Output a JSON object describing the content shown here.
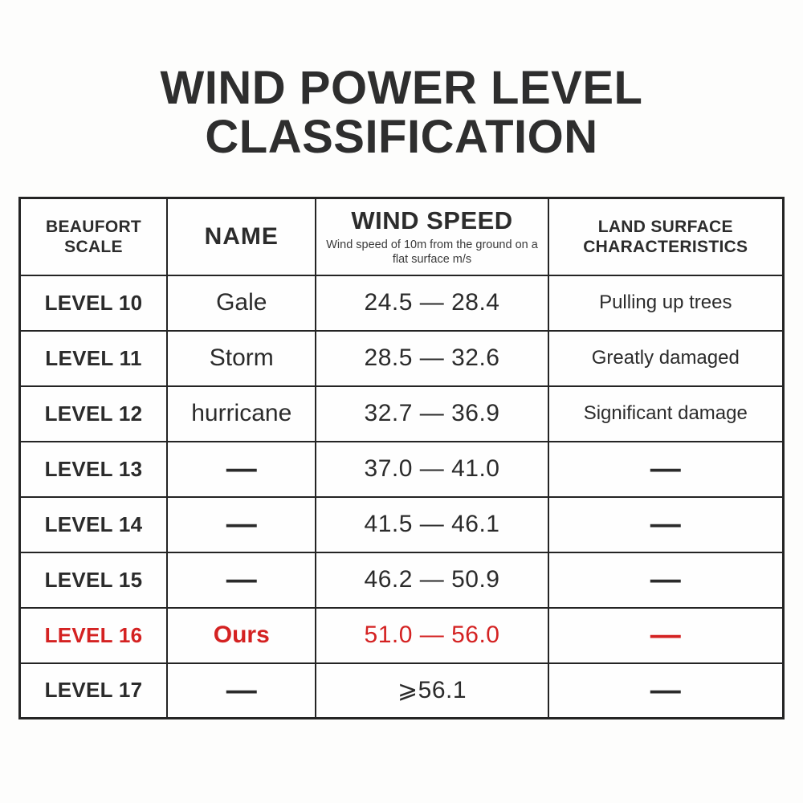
{
  "title": {
    "line1": "WIND POWER LEVEL",
    "line2": "CLASSIFICATION"
  },
  "colors": {
    "accent_red": "#d42222",
    "text": "#2b2b2b",
    "border": "#242424",
    "background": "#fdfdfc"
  },
  "table": {
    "headers": [
      {
        "label": "BEAUFORT SCALE"
      },
      {
        "label": "NAME"
      },
      {
        "label": "WIND SPEED",
        "sub": "Wind speed of 10m from the ground on a flat surface m/s"
      },
      {
        "label": "LAND SURFACE CHARACTERISTICS"
      }
    ],
    "rows": [
      {
        "level": "LEVEL 10",
        "name": "Gale",
        "speed": "24.5 — 28.4",
        "land": "Pulling up trees",
        "highlight": false
      },
      {
        "level": "LEVEL 11",
        "name": "Storm",
        "speed": "28.5 — 32.6",
        "land": "Greatly damaged",
        "highlight": false
      },
      {
        "level": "LEVEL 12",
        "name": "hurricane",
        "speed": "32.7 — 36.9",
        "land": "Significant damage",
        "highlight": false
      },
      {
        "level": "LEVEL 13",
        "name": "—",
        "speed": "37.0 — 41.0",
        "land": "—",
        "highlight": false
      },
      {
        "level": "LEVEL 14",
        "name": "—",
        "speed": "41.5 — 46.1",
        "land": "—",
        "highlight": false
      },
      {
        "level": "LEVEL 15",
        "name": "—",
        "speed": "46.2 — 50.9",
        "land": "—",
        "highlight": false
      },
      {
        "level": "LEVEL 16",
        "name": "Ours",
        "speed": "51.0 — 56.0",
        "land": "—",
        "highlight": true
      },
      {
        "level": "LEVEL 17",
        "name": "—",
        "speed": "⩾56.1",
        "land": "—",
        "highlight": false
      }
    ]
  },
  "chart_data": {
    "type": "table",
    "title": "WIND POWER LEVEL CLASSIFICATION",
    "columns": [
      "BEAUFORT SCALE",
      "NAME",
      "WIND SPEED (Wind speed of 10m from the ground on a flat surface m/s)",
      "LAND SURFACE CHARACTERISTICS"
    ],
    "rows": [
      [
        "LEVEL 10",
        "Gale",
        "24.5 — 28.4",
        "Pulling up trees"
      ],
      [
        "LEVEL 11",
        "Storm",
        "28.5 — 32.6",
        "Greatly damaged"
      ],
      [
        "LEVEL 12",
        "hurricane",
        "32.7 — 36.9",
        "Significant damage"
      ],
      [
        "LEVEL 13",
        "—",
        "37.0 — 41.0",
        "—"
      ],
      [
        "LEVEL 14",
        "—",
        "41.5 — 46.1",
        "—"
      ],
      [
        "LEVEL 15",
        "—",
        "46.2 — 50.9",
        "—"
      ],
      [
        "LEVEL 16",
        "Ours",
        "51.0 — 56.0",
        "—"
      ],
      [
        "LEVEL 17",
        "—",
        "⩾56.1",
        "—"
      ]
    ],
    "highlighted_row": "LEVEL 16",
    "highlight_color": "#d42222",
    "speed_unit": "m/s"
  }
}
